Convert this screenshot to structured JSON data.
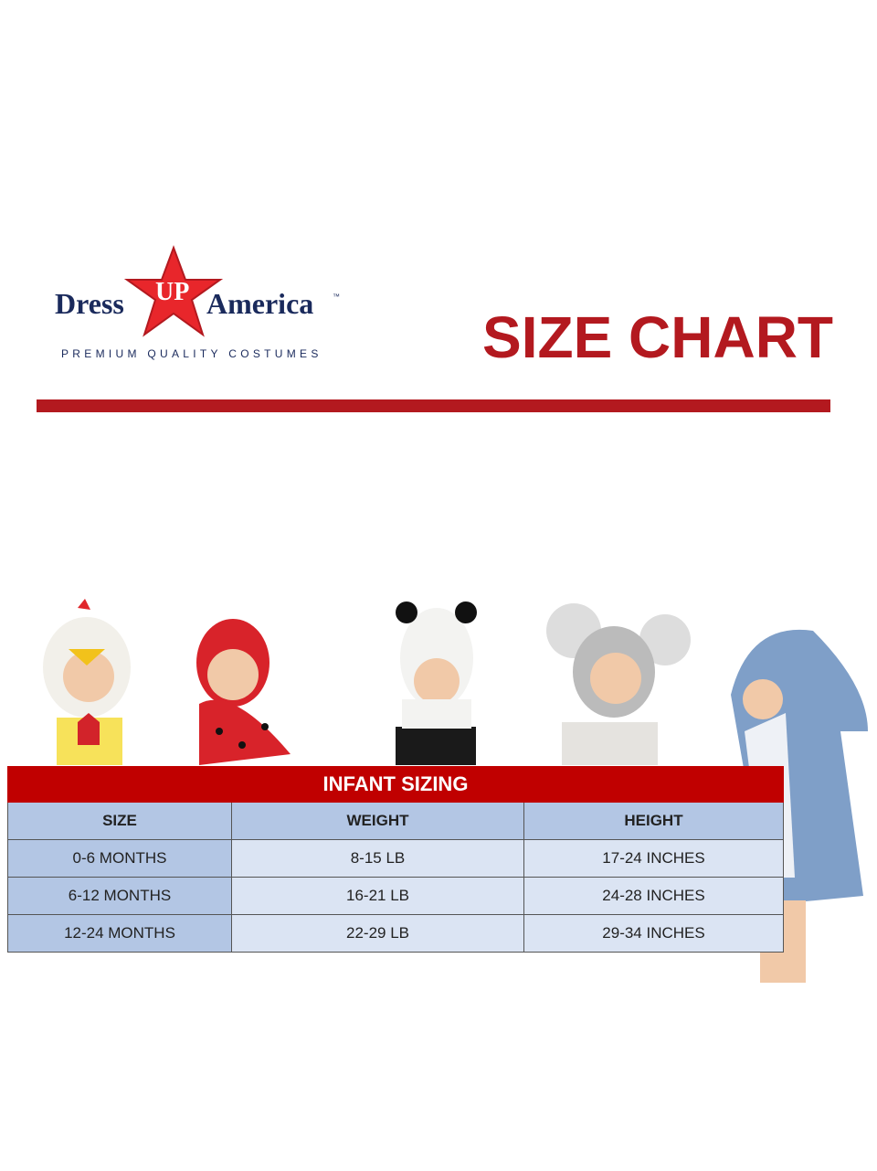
{
  "brand": {
    "name_left": "Dress",
    "name_mid": "UP",
    "name_right": "America",
    "trademark": "™",
    "tagline": "PREMIUM QUALITY COSTUMES",
    "colors": {
      "red": "#b3191f",
      "navy": "#1a2a5c"
    }
  },
  "title": "SIZE CHART",
  "images": [
    "chicken-costume-baby",
    "ladybug-costume-baby",
    "panda-costume-baby",
    "mouse-costume-baby",
    "shark-costume-toddler"
  ],
  "table": {
    "banner": "INFANT SIZING",
    "headers": [
      "SIZE",
      "WEIGHT",
      "HEIGHT"
    ],
    "rows": [
      [
        "0-6 MONTHS",
        "8-15 LB",
        "17-24 INCHES"
      ],
      [
        "6-12 MONTHS",
        "16-21 LB",
        "24-28 INCHES"
      ],
      [
        "12-24 MONTHS",
        "22-29 LB",
        "29-34 INCHES"
      ]
    ],
    "colors": {
      "banner": "#c00000",
      "header": "#b3c6e4",
      "cell": "#dbe4f3"
    }
  }
}
